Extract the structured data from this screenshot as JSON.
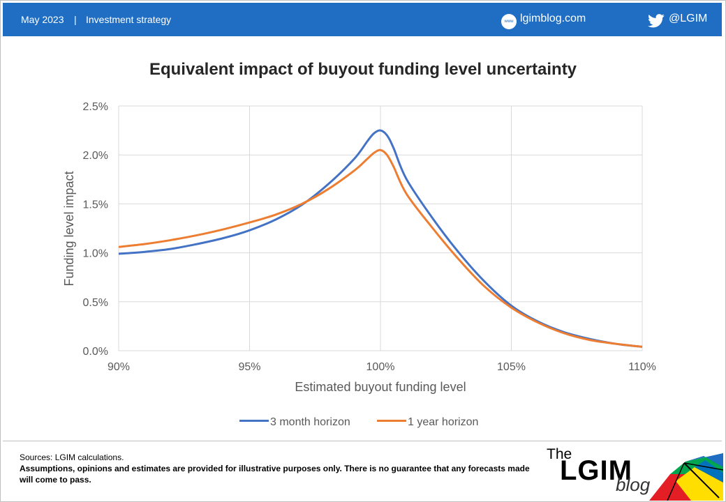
{
  "header": {
    "date": "May 2023",
    "separator": "|",
    "category": "Investment strategy",
    "website": "lgimblog.com",
    "twitter": "@LGIM",
    "www_icon_text": "www",
    "bar_color": "#1f6ec4"
  },
  "chart_data": {
    "type": "line",
    "title": "Equivalent impact of buyout funding level uncertainty",
    "xlabel": "Estimated buyout funding level",
    "ylabel": "Funding level impact",
    "xlim": [
      90,
      110
    ],
    "ylim": [
      0.0,
      2.5
    ],
    "x_ticks": [
      "90%",
      "95%",
      "100%",
      "105%",
      "110%"
    ],
    "y_ticks": [
      "0.0%",
      "0.5%",
      "1.0%",
      "1.5%",
      "2.0%",
      "2.5%"
    ],
    "grid": true,
    "legend_position": "bottom",
    "x": [
      90,
      91,
      92,
      93,
      94,
      95,
      96,
      97,
      98,
      99,
      99.5,
      99.75,
      100,
      100.25,
      100.5,
      101,
      102,
      103,
      104,
      105,
      106,
      107,
      108,
      109,
      110
    ],
    "series": [
      {
        "name": "3 month horizon",
        "color": "#4472c4",
        "values": [
          0.99,
          1.01,
          1.04,
          1.09,
          1.15,
          1.23,
          1.34,
          1.49,
          1.7,
          1.96,
          2.14,
          2.22,
          2.25,
          2.2,
          2.07,
          1.75,
          1.35,
          1.0,
          0.7,
          0.46,
          0.3,
          0.19,
          0.12,
          0.07,
          0.04
        ]
      },
      {
        "name": "1 year horizon",
        "color": "#ed7d31",
        "values": [
          1.06,
          1.09,
          1.13,
          1.18,
          1.24,
          1.31,
          1.39,
          1.5,
          1.65,
          1.84,
          1.96,
          2.02,
          2.05,
          2.0,
          1.88,
          1.6,
          1.25,
          0.93,
          0.65,
          0.44,
          0.29,
          0.18,
          0.11,
          0.07,
          0.04
        ]
      }
    ]
  },
  "footer": {
    "sources": "Sources: LGIM calculations.",
    "disclaimer": "Assumptions,  opinions and estimates are provided for illustrative purposes only. There is no guarantee that any forecasts  made will come to pass.",
    "logo_the": "The",
    "logo_main": "LGIM",
    "logo_blog": "blog"
  }
}
